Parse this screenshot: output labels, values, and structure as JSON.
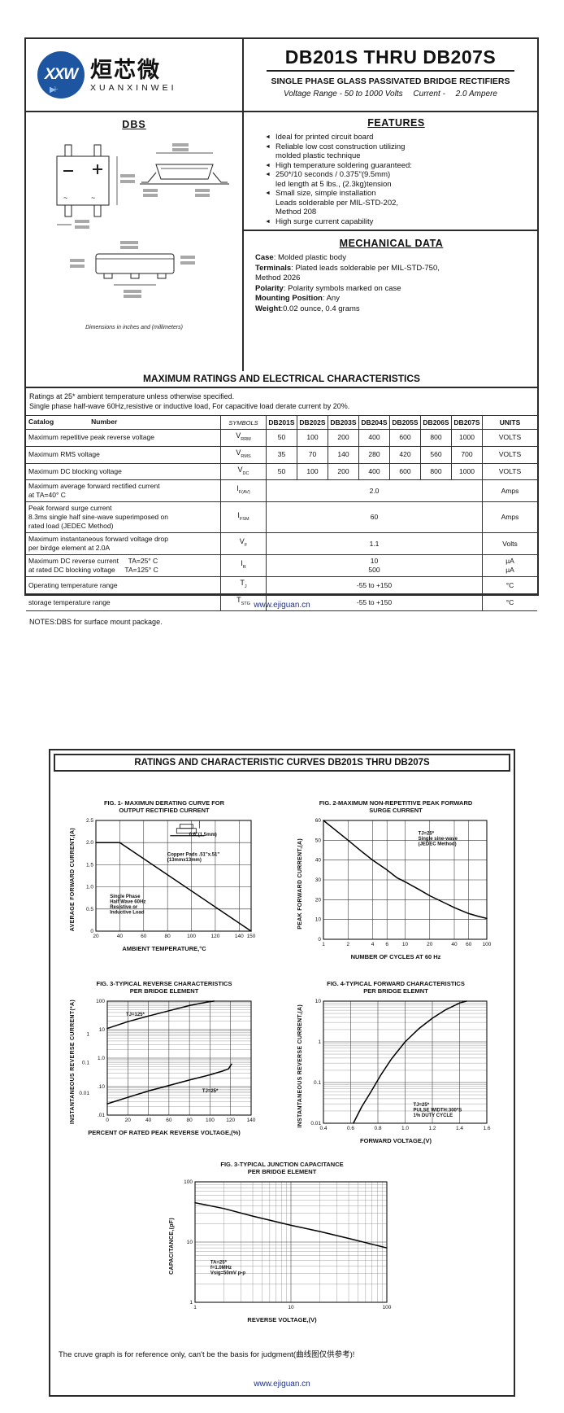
{
  "colors": {
    "logo_blue": "#1d55a1",
    "footer_link": "#20318a",
    "ink": "#111111"
  },
  "logo": {
    "mark": "XXW",
    "diode_glyph": "▶⊦",
    "cn_name": "烜芯微",
    "en_name": "XUANXINWEI"
  },
  "header": {
    "title": "DB201S THRU DB207S",
    "subtitle": "SINGLE PHASE GLASS PASSIVATED BRIDGE RECTIFIERS",
    "voltage_range": "Voltage Range - 50 to 1000 Volts",
    "current_label": "Current -",
    "current_value": "2.0 Ampere"
  },
  "package": {
    "name": "DBS",
    "note": "Dimensions in inches and (millimeters)"
  },
  "features": {
    "heading": "FEATURES",
    "bullet": "◄",
    "items": [
      [
        "Ideal for printed circuit board"
      ],
      [
        "Reliable low cost construction utilizing",
        "molded plastic technique"
      ],
      [
        "High temperature soldering guaranteed:"
      ],
      [
        "250*/10 seconds / 0.375\"(9.5mm)",
        "led length at 5 lbs., (2.3kg)tension"
      ],
      [
        "Small size, simple installation",
        "Leads solderable per MIL-STD-202,",
        "Method 208"
      ],
      [
        "High surge current capability"
      ]
    ]
  },
  "mechanical": {
    "heading": "MECHANICAL DATA",
    "items": [
      {
        "b": "Case",
        "t": ": Molded plastic body"
      },
      {
        "b": "Terminals",
        "t": ": Plated leads solderable per MIL-STD-750,"
      },
      {
        "b": "",
        "t": " Method 2026"
      },
      {
        "b": "Polarity",
        "t": ": Polarity symbols marked on case"
      },
      {
        "b": "Mounting Position",
        "t": ": Any"
      },
      {
        "b": "Weight",
        "t": ":0.02 ounce, 0.4 grams"
      }
    ]
  },
  "ratings": {
    "banner": "MAXIMUM RATINGS AND ELECTRICAL CHARACTERISTICS",
    "note1": "Ratings at 25* ambient temperature unless otherwise specified.",
    "note2": "Single phase half-wave 60Hz,resistive or inductive load, For capacitive load derate current by 20%.",
    "footnote": "NOTES:DBS for surface mount package."
  },
  "table": {
    "header": {
      "catalog": "Catalog",
      "number": "Number",
      "symbols": "SYMBOLS",
      "devices": [
        "DB201S",
        "DB202S",
        "DB203S",
        "DB204S",
        "DB205S",
        "DB206S",
        "DB207S"
      ],
      "units": "UNITS"
    },
    "rows": [
      {
        "label_lines": [
          "Maximum repetitive peak reverse voltage"
        ],
        "sym": "V",
        "sub": "RRM",
        "values": [
          "50",
          "100",
          "200",
          "400",
          "600",
          "800",
          "1000"
        ],
        "units": "VOLTS"
      },
      {
        "label_lines": [
          "Maximum RMS voltage"
        ],
        "sym": "V",
        "sub": "RMS",
        "values": [
          "35",
          "70",
          "140",
          "280",
          "420",
          "560",
          "700"
        ],
        "units": "VOLTS"
      },
      {
        "label_lines": [
          "Maximum DC blocking voltage"
        ],
        "sym": "V",
        "sub": "DC",
        "values": [
          "50",
          "100",
          "200",
          "400",
          "600",
          "800",
          "1000"
        ],
        "units": "VOLTS"
      },
      {
        "label_lines": [
          "Maximum average forward rectified current",
          "at TA=40° C"
        ],
        "sym": "I",
        "sub": "F(AV)",
        "span": "2.0",
        "units": "Amps"
      },
      {
        "label_lines": [
          "Peak forward surge current",
          "8.3ms single half sine-wave superimposed on",
          "rated load (JEDEC Method)"
        ],
        "sym": "I",
        "sub": "FSM",
        "span": "60",
        "units": "Amps"
      },
      {
        "label_lines": [
          "Maximum instantaneous forward voltage drop",
          "per birdge element at 2.0A"
        ],
        "sym": "V",
        "sub": "F",
        "span": "1.1",
        "units": "Volts"
      },
      {
        "label_lines": [
          "Maximum DC reverse current     TA=25° C",
          "at rated DC blocking voltage     TA=125° C"
        ],
        "sym": "I",
        "sub": "R",
        "span_lines": [
          "10",
          "500"
        ],
        "units_lines": [
          "µA",
          "µA"
        ]
      },
      {
        "label_lines": [
          "Operating temperature range"
        ],
        "sym": "T",
        "sub": "J",
        "span": "-55 to +150",
        "units": "°C"
      },
      {
        "label_lines": [
          "storage temperature range"
        ],
        "sym": "T",
        "sub": "STG",
        "span": "-55 to +150",
        "units": "°C"
      }
    ]
  },
  "footer": {
    "url": "www.ejiguan.cn"
  },
  "curves": {
    "banner": "RATINGS AND CHARACTERISTIC CURVES DB201S THRU DB207S",
    "reference_note": "The cruve graph is for reference only, can't be the basis for judgment(曲线图仅供参考)!"
  },
  "chart_data": [
    {
      "id": "fig1",
      "type": "line",
      "title": "FIG. 1- MAXIMUN DERATING CURVE FOR\nOUTPUT RECTIFIED CURRENT",
      "xlabel": "AMBIENT TEMPERATURE,°C",
      "ylabel": "AVERAGE FORWARD CURRENT,(A)",
      "x": {
        "scale": "linear",
        "min": 20,
        "max": 150,
        "ticks": [
          {
            "v": 20,
            "l": "20"
          },
          {
            "v": 40,
            "l": "40"
          },
          {
            "v": 60,
            "l": "60"
          },
          {
            "v": 80,
            "l": "80"
          },
          {
            "v": 100,
            "l": "100"
          },
          {
            "v": 120,
            "l": "120"
          },
          {
            "v": 140,
            "l": "140"
          },
          {
            "v": 150,
            "l": "150"
          }
        ]
      },
      "y": {
        "scale": "linear",
        "min": 0,
        "max": 2.5,
        "ticks": [
          {
            "v": 0,
            "l": "0"
          },
          {
            "v": 0.5,
            "l": "0.5"
          },
          {
            "v": 1,
            "l": "1.0"
          },
          {
            "v": 1.5,
            "l": "1.5"
          },
          {
            "v": 2,
            "l": "2.0"
          },
          {
            "v": 2.5,
            "l": "2.5"
          }
        ]
      },
      "series": [
        {
          "name": "derating-curve",
          "points": [
            [
              20,
              2
            ],
            [
              40,
              2
            ],
            [
              150,
              0
            ]
          ]
        }
      ],
      "annotations": [
        {
          "fx": 0.6,
          "fy": 0.14,
          "lines": [
            "0.6\"(1.5mm)"
          ]
        },
        {
          "fx": 0.46,
          "fy": 0.32,
          "lines": [
            "Copper Pads .51\"x.51\"",
            "(13mmx13mm)"
          ]
        },
        {
          "fx": 0.09,
          "fy": 0.7,
          "lines": [
            "Single Phase",
            "Half Wave 60Hz",
            "Resistive or",
            "Inductive Load"
          ]
        }
      ],
      "inset": {
        "fx": 0.52,
        "fy": 0.02
      }
    },
    {
      "id": "fig2",
      "type": "line",
      "title": "FIG. 2-MAXIMUM NON-REPETITIVE PEAK FORWARD\nSURGE CURRENT",
      "xlabel": "NUMBER OF CYCLES AT 60 Hz",
      "ylabel": "PEAK  FORWARD CURRENT,(A)",
      "x": {
        "scale": "log",
        "min": 1,
        "max": 100,
        "ticks": [
          {
            "v": 1,
            "l": "1"
          },
          {
            "v": 2,
            "l": "2"
          },
          {
            "v": 4,
            "l": "4"
          },
          {
            "v": 6,
            "l": "6"
          },
          {
            "v": 10,
            "l": "10"
          },
          {
            "v": 20,
            "l": "20"
          },
          {
            "v": 40,
            "l": "40"
          },
          {
            "v": 60,
            "l": "60"
          },
          {
            "v": 100,
            "l": "100"
          }
        ]
      },
      "y": {
        "scale": "linear",
        "min": 0,
        "max": 60,
        "ticks": [
          {
            "v": 0,
            "l": "0"
          },
          {
            "v": 10,
            "l": "10"
          },
          {
            "v": 20,
            "l": "20"
          },
          {
            "v": 30,
            "l": "30"
          },
          {
            "v": 40,
            "l": "40"
          },
          {
            "v": 50,
            "l": "50"
          },
          {
            "v": 60,
            "l": "60"
          }
        ]
      },
      "series": [
        {
          "name": "surge-current",
          "points": [
            [
              1,
              60
            ],
            [
              2,
              50
            ],
            [
              3,
              44
            ],
            [
              4,
              40
            ],
            [
              6,
              35
            ],
            [
              8,
              31
            ],
            [
              10,
              29
            ],
            [
              15,
              25
            ],
            [
              20,
              22
            ],
            [
              30,
              18.5
            ],
            [
              40,
              16
            ],
            [
              60,
              13
            ],
            [
              80,
              11.5
            ],
            [
              100,
              10.5
            ]
          ]
        }
      ],
      "annotations": [
        {
          "fx": 0.58,
          "fy": 0.12,
          "lines": [
            "TJ=25*",
            "Single sine-wave",
            "(JEDEC Method)"
          ]
        }
      ]
    },
    {
      "id": "fig3",
      "type": "line",
      "title": "FIG. 3-TYPICAL REVERSE CHARACTERISTICS\nPER BRIDGE ELEMENT",
      "xlabel": "PERCENT OF RATED PEAK REVERSE VOLTAGE,(%)",
      "ylabel": "INSTANTANEOUS REVERSE CURRENT(*A)",
      "x": {
        "scale": "linear",
        "min": 0,
        "max": 140,
        "ticks": [
          {
            "v": 0,
            "l": "0"
          },
          {
            "v": 20,
            "l": "20"
          },
          {
            "v": 40,
            "l": "40"
          },
          {
            "v": 60,
            "l": "60"
          },
          {
            "v": 80,
            "l": "80"
          },
          {
            "v": 100,
            "l": "100"
          },
          {
            "v": 120,
            "l": "120"
          },
          {
            "v": 140,
            "l": "140"
          }
        ]
      },
      "y": {
        "scale": "log",
        "min": 0.01,
        "max": 100,
        "minors": true,
        "ticks": [
          {
            "v": 100,
            "l": "100"
          },
          {
            "v": 10,
            "l": "10"
          },
          {
            "v": 1,
            "l": "1.0"
          },
          {
            "v": 0.1,
            "l": ".10"
          },
          {
            "v": 0.01,
            "l": ".01"
          }
        ],
        "ticks2": [
          {
            "v": 7,
            "l": "1"
          },
          {
            "v": 0.7,
            "l": "0.1"
          },
          {
            "v": 0.06,
            "l": "0.01"
          }
        ]
      },
      "series": [
        {
          "name": "tj-125",
          "points": [
            [
              0,
              11
            ],
            [
              20,
              19
            ],
            [
              40,
              30
            ],
            [
              60,
              46
            ],
            [
              80,
              70
            ],
            [
              100,
              97
            ],
            [
              104,
              100
            ]
          ]
        },
        {
          "name": "tj-25",
          "points": [
            [
              0,
              0.025
            ],
            [
              20,
              0.042
            ],
            [
              40,
              0.07
            ],
            [
              60,
              0.11
            ],
            [
              80,
              0.17
            ],
            [
              100,
              0.26
            ],
            [
              112,
              0.35
            ],
            [
              118,
              0.42
            ],
            [
              120,
              0.55
            ],
            [
              121,
              0.62
            ]
          ]
        }
      ],
      "annotations": [
        {
          "fx": 0.13,
          "fy": 0.13,
          "lines": [
            "TJ=125*"
          ]
        },
        {
          "fx": 0.66,
          "fy": 0.8,
          "lines": [
            "TJ=25*"
          ]
        }
      ]
    },
    {
      "id": "fig4",
      "type": "line",
      "title": "FIG. 4-TYPICAL FORWARD CHARACTERISTICS\nPER BRIDGE ELEMNT",
      "xlabel": "FORWARD VOLTAGE,(V)",
      "ylabel": "INSTANTANEOUS REVERSE CURRENT,(A)",
      "x": {
        "scale": "linear",
        "min": 0.4,
        "max": 1.6,
        "ticks": [
          {
            "v": 0.4,
            "l": "0.4"
          },
          {
            "v": 0.6,
            "l": "0.6"
          },
          {
            "v": 0.8,
            "l": "0.8"
          },
          {
            "v": 1.0,
            "l": "1.0"
          },
          {
            "v": 1.2,
            "l": "1.2"
          },
          {
            "v": 1.4,
            "l": "1.4"
          },
          {
            "v": 1.6,
            "l": "1.6"
          }
        ]
      },
      "y": {
        "scale": "log",
        "min": 0.01,
        "max": 10,
        "minors": true,
        "ticks": [
          {
            "v": 10,
            "l": "10"
          },
          {
            "v": 1,
            "l": "1"
          },
          {
            "v": 0.1,
            "l": "0.1"
          },
          {
            "v": 0.01,
            "l": "0.01"
          }
        ]
      },
      "series": [
        {
          "name": "forward-vi",
          "points": [
            [
              0.62,
              0.01
            ],
            [
              0.68,
              0.025
            ],
            [
              0.75,
              0.06
            ],
            [
              0.82,
              0.15
            ],
            [
              0.9,
              0.38
            ],
            [
              1.0,
              1.0
            ],
            [
              1.1,
              2.1
            ],
            [
              1.2,
              3.8
            ],
            [
              1.3,
              6.2
            ],
            [
              1.4,
              9
            ],
            [
              1.45,
              10
            ]
          ]
        }
      ],
      "annotations": [
        {
          "fx": 0.55,
          "fy": 0.86,
          "lines": [
            "TJ=25*",
            "PULSE WIDTH:300*S",
            "1% DUTY CYCLE"
          ]
        }
      ]
    },
    {
      "id": "fig5",
      "type": "line",
      "title": "FIG. 3-TYPICAL JUNCTION CAPACITANCE\nPER BRIDGE ELEMENT",
      "xlabel": "REVERSE VOLTAGE,(V)",
      "ylabel": "CAPACITANCE,(pF)",
      "x": {
        "scale": "log",
        "min": 1,
        "max": 100,
        "minors": true,
        "ticks": [
          {
            "v": 1,
            "l": "1"
          },
          {
            "v": 10,
            "l": "10"
          },
          {
            "v": 100,
            "l": "100"
          }
        ]
      },
      "y": {
        "scale": "log",
        "min": 1,
        "max": 100,
        "minors": true,
        "ticks": [
          {
            "v": 100,
            "l": "100"
          },
          {
            "v": 10,
            "l": "10"
          },
          {
            "v": 1,
            "l": "1"
          }
        ]
      },
      "series": [
        {
          "name": "junction-capacitance",
          "points": [
            [
              1,
              45
            ],
            [
              2,
              36
            ],
            [
              4,
              27
            ],
            [
              10,
              19
            ],
            [
              20,
              15
            ],
            [
              40,
              11.5
            ],
            [
              100,
              8
            ]
          ]
        }
      ],
      "annotations": [
        {
          "fx": 0.08,
          "fy": 0.68,
          "lines": [
            "TA=25*",
            "f=1.0MHz",
            "Vsig=50mV p-p"
          ]
        }
      ]
    }
  ]
}
